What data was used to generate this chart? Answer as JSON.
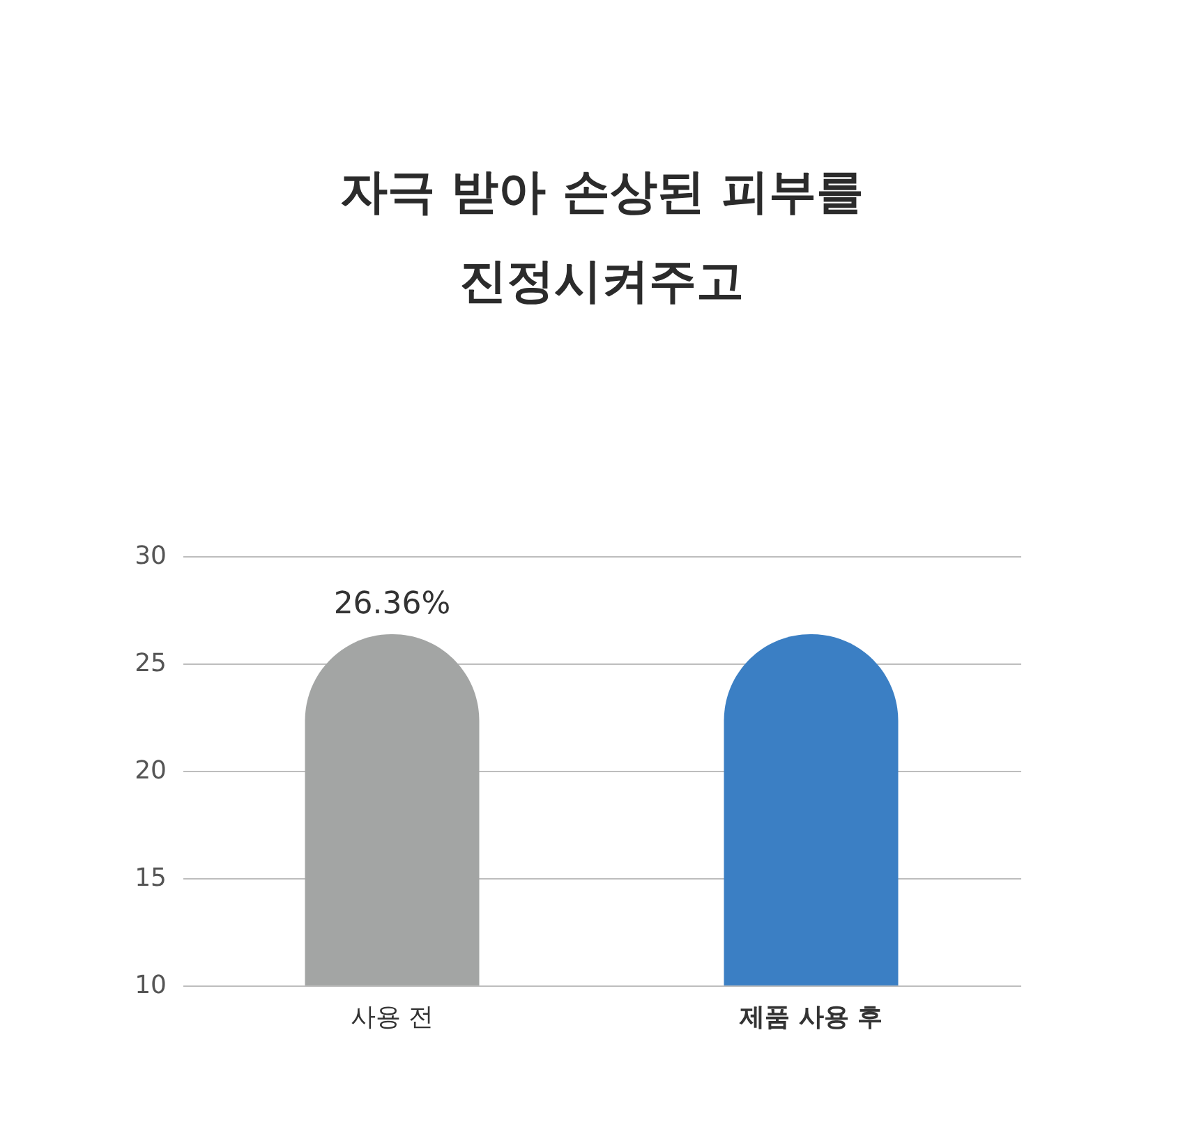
{
  "chart_data": {
    "type": "bar",
    "title": "자극 받아 손상된 피부를\n진정시켜주고",
    "categories": [
      "사용 전",
      "제품 사용 후"
    ],
    "values": [
      26.36,
      26.36
    ],
    "colors": [
      "#a3a5a4",
      "#3b7fc4"
    ],
    "value_labels": [
      "26.36%",
      null
    ],
    "ylim": [
      10,
      30
    ],
    "yticks": [
      10,
      15,
      20,
      25,
      30
    ],
    "grid": "y"
  }
}
